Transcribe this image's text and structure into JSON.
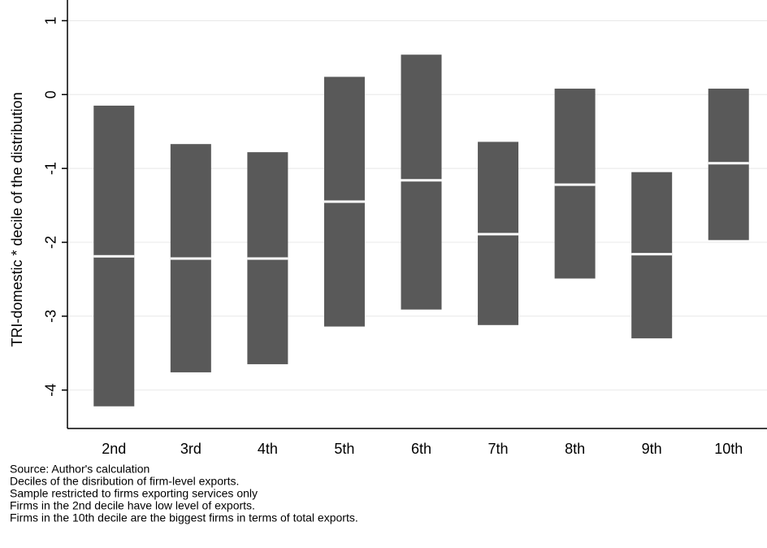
{
  "chart_data": {
    "type": "rangebar",
    "ylabel": "TRI-domestic * decile of the distribution",
    "categories": [
      "2nd",
      "3rd",
      "4th",
      "5th",
      "6th",
      "7th",
      "8th",
      "9th",
      "10th"
    ],
    "low": [
      -4.22,
      -3.76,
      -3.65,
      -3.14,
      -2.91,
      -3.12,
      -2.49,
      -3.3,
      -1.97
    ],
    "high": [
      -0.15,
      -0.67,
      -0.78,
      0.24,
      0.54,
      -0.64,
      0.08,
      -1.05,
      0.08
    ],
    "median": [
      -2.19,
      -2.22,
      -2.22,
      -1.45,
      -1.16,
      -1.89,
      -1.22,
      -2.16,
      -0.93
    ],
    "color": "#595959",
    "median_color": "#ffffff",
    "ylim": [
      -4.52,
      1.28
    ],
    "yticks": [
      -4,
      -3,
      -2,
      -1,
      0,
      1
    ],
    "grid": true,
    "notes": [
      "Source: Author's calculation",
      "Deciles of the disribution of firm-level exports.",
      "Sample restricted to firms exporting services only",
      "Firms in the 2nd decile have low level of exports.",
      "Firms in the 10th decile are the biggest firms in terms of total exports."
    ]
  }
}
